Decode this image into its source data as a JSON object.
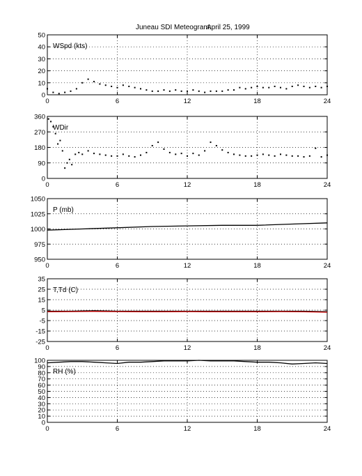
{
  "title": "Juneau SDI Meteogram:",
  "date": "April 25, 1999",
  "x_ticks": [
    "0",
    "6",
    "12",
    "18",
    "24"
  ],
  "chart_data": [
    {
      "type": "scatter",
      "label": "WSpd (kts)",
      "ylim": [
        0,
        50
      ],
      "yticks": [
        "0",
        "10",
        "20",
        "30",
        "40",
        "50"
      ],
      "xlim": [
        0,
        24
      ],
      "grid": true,
      "series": [
        {
          "color": "#000000",
          "x": [
            0,
            0.5,
            1,
            1.5,
            2,
            2.5,
            3,
            3.5,
            4,
            4.5,
            5,
            5.5,
            6,
            6.5,
            7,
            7.5,
            8,
            8.5,
            9,
            9.5,
            10,
            10.5,
            11,
            11.5,
            12,
            12.5,
            13,
            13.5,
            14,
            14.5,
            15,
            15.5,
            16,
            16.5,
            17,
            17.5,
            18,
            18.5,
            19,
            19.5,
            20,
            20.5,
            21,
            21.5,
            22,
            22.5,
            23,
            23.5,
            24
          ],
          "y": [
            5,
            2,
            1,
            2,
            3,
            5,
            10,
            13,
            11,
            9,
            8,
            7,
            6,
            8,
            7,
            6,
            5,
            4,
            3,
            3,
            4,
            3,
            4,
            3,
            3,
            4,
            3,
            2,
            3,
            3,
            3,
            4,
            4,
            6,
            5,
            6,
            7,
            6,
            6,
            7,
            6,
            5,
            7,
            8,
            7,
            6,
            7,
            6,
            7
          ]
        }
      ]
    },
    {
      "type": "scatter",
      "label": "WDir",
      "ylim": [
        0,
        360
      ],
      "yticks": [
        "0",
        "90",
        "180",
        "270",
        "360"
      ],
      "xlim": [
        0,
        24
      ],
      "grid": true,
      "series": [
        {
          "color": "#000000",
          "x": [
            0.1,
            0.3,
            0.5,
            0.7,
            0.9,
            1.1,
            1.3,
            1.5,
            1.7,
            1.9,
            2.1,
            2.4,
            2.7,
            3.0,
            3.5,
            4.0,
            4.5,
            5.0,
            5.5,
            6.0,
            6.5,
            7.0,
            7.5,
            8.0,
            8.5,
            9.0,
            9.5,
            10.0,
            10.5,
            11.0,
            11.5,
            12.0,
            12.5,
            13.0,
            13.5,
            14.0,
            14.5,
            15.0,
            15.5,
            16.0,
            16.5,
            17.0,
            17.5,
            18.0,
            18.5,
            19.0,
            19.5,
            20.0,
            20.5,
            21.0,
            21.5,
            22.0,
            22.5,
            23.0,
            23.5,
            24.0
          ],
          "y": [
            345,
            330,
            300,
            260,
            200,
            220,
            160,
            60,
            90,
            110,
            80,
            140,
            150,
            140,
            160,
            145,
            140,
            135,
            130,
            130,
            140,
            130,
            125,
            135,
            150,
            190,
            210,
            170,
            150,
            140,
            145,
            130,
            145,
            135,
            160,
            210,
            190,
            165,
            150,
            140,
            135,
            130,
            130,
            135,
            140,
            135,
            130,
            140,
            135,
            130,
            130,
            125,
            130,
            175,
            125,
            135
          ]
        }
      ]
    },
    {
      "type": "line",
      "label": "P (mb)",
      "ylim": [
        950,
        1050
      ],
      "yticks": [
        "950",
        "975",
        "1000",
        "1025",
        "1050"
      ],
      "xlim": [
        0,
        24
      ],
      "grid": true,
      "series": [
        {
          "color": "#000000",
          "x": [
            0,
            3,
            6,
            9,
            12,
            15,
            18,
            21,
            24
          ],
          "y": [
            998,
            1000,
            1002,
            1004,
            1005,
            1006,
            1006,
            1008,
            1010
          ]
        }
      ]
    },
    {
      "type": "line",
      "label": "T,Td (C)",
      "ylim": [
        -25,
        35
      ],
      "yticks": [
        "-25",
        "-15",
        "-5",
        "5",
        "15",
        "25",
        "35"
      ],
      "xlim": [
        0,
        24
      ],
      "grid": true,
      "series": [
        {
          "color": "#000000",
          "x": [
            0,
            2,
            4,
            6,
            8,
            10,
            12,
            14,
            16,
            18,
            20,
            22,
            24
          ],
          "y": [
            4,
            4,
            4.5,
            4,
            4,
            4,
            4,
            4,
            4,
            4,
            4,
            4,
            3.5
          ]
        },
        {
          "color": "#cc0000",
          "x": [
            0,
            2,
            4,
            6,
            8,
            10,
            12,
            14,
            16,
            18,
            20,
            22,
            24
          ],
          "y": [
            3.5,
            3.6,
            3.8,
            3.6,
            3.5,
            3.5,
            3.6,
            3.5,
            3.5,
            3.5,
            3.6,
            3.4,
            3.0
          ]
        }
      ]
    },
    {
      "type": "line",
      "label": "RH (%)",
      "ylim": [
        0,
        100
      ],
      "yticks": [
        "0",
        "10",
        "20",
        "30",
        "40",
        "50",
        "60",
        "70",
        "80",
        "90",
        "100"
      ],
      "xlim": [
        0,
        24
      ],
      "grid": true,
      "series": [
        {
          "color": "#000000",
          "x": [
            0,
            1,
            2,
            3,
            4,
            5,
            6,
            7,
            8,
            9,
            10,
            11,
            12,
            13,
            14,
            15,
            16,
            17,
            18,
            19,
            20,
            21,
            22,
            23,
            24
          ],
          "y": [
            96,
            97,
            98,
            98,
            97,
            96,
            95,
            97,
            97,
            98,
            99,
            99,
            99,
            100,
            99,
            99,
            99,
            98,
            97,
            97,
            96,
            94,
            95,
            96,
            95
          ]
        }
      ]
    }
  ]
}
